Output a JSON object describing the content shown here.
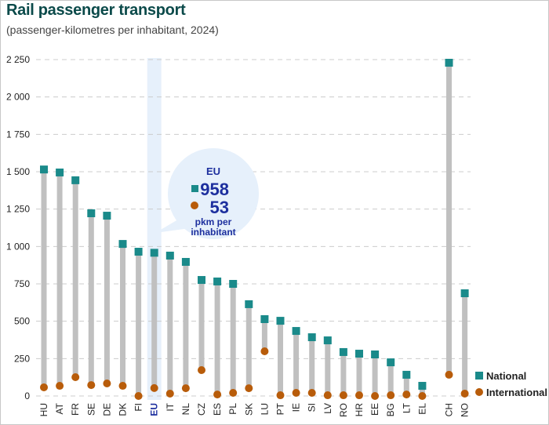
{
  "chart_data": {
    "type": "dot-range",
    "title": "Rail passenger transport",
    "subtitle": "(passenger-kilometres per inhabitant, 2024)",
    "ylim": [
      0,
      2250
    ],
    "yticks": [
      0,
      250,
      500,
      750,
      1000,
      1250,
      1500,
      1750,
      2000,
      2250
    ],
    "ytick_labels": [
      "0",
      "250",
      "500",
      "750",
      "1 000",
      "1 250",
      "1 500",
      "1 750",
      "2 000",
      "2 250"
    ],
    "grid": true,
    "legend_position": "bottom-right",
    "highlight_category": "EU",
    "categories": [
      "HU",
      "AT",
      "FR",
      "SE",
      "DE",
      "DK",
      "FI",
      "EU",
      "IT",
      "NL",
      "CZ",
      "ES",
      "PL",
      "SK",
      "LU",
      "PT",
      "IE",
      "SI",
      "LV",
      "RO",
      "HR",
      "EE",
      "BG",
      "LT",
      "EL",
      "CH",
      "NO"
    ],
    "series": [
      {
        "name": "National",
        "marker": "square",
        "color": "#1a8a8a",
        "values": [
          1515,
          1495,
          1443,
          1222,
          1206,
          1017,
          965,
          958,
          939,
          897,
          776,
          766,
          750,
          614,
          514,
          503,
          435,
          393,
          372,
          294,
          283,
          278,
          225,
          142,
          68,
          2229,
          687
        ]
      },
      {
        "name": "International",
        "marker": "circle",
        "color": "#b85c0a",
        "values": [
          58,
          68,
          126,
          73,
          84,
          68,
          0,
          53,
          16,
          52,
          173,
          10,
          21,
          52,
          299,
          5,
          21,
          21,
          5,
          5,
          5,
          0,
          5,
          10,
          0,
          142,
          16
        ]
      }
    ],
    "annotation": {
      "label": "EU",
      "national_value": "958",
      "international_value": "53",
      "unit_line1": "pkm per",
      "unit_line2": "inhabitant"
    }
  },
  "colors": {
    "title": "#0b4a4a",
    "national": "#1a8a8a",
    "international": "#b85c0a",
    "stem": "#c0c0c0",
    "eu_highlight": "#e6f0fb",
    "bubble": "#e6f0fb",
    "eu_text": "#1d2f9e",
    "grid": "#cccccc"
  }
}
